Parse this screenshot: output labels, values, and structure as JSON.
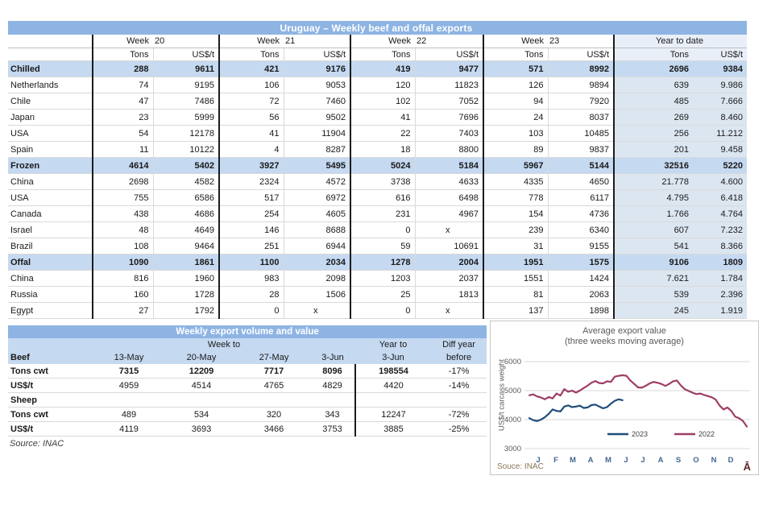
{
  "main_table": {
    "title": "Uruguay – Weekly beef and offal exports",
    "week_word": "Week",
    "weeks": [
      "20",
      "21",
      "22",
      "23"
    ],
    "ytd_label": "Year to date",
    "col_tons": "Tons",
    "col_usdt": "US$/t",
    "rows": [
      {
        "label": "Chilled",
        "section": true,
        "values": [
          "288",
          "9611",
          "421",
          "9176",
          "419",
          "9477",
          "571",
          "8992",
          "2696",
          "9384"
        ]
      },
      {
        "label": "Netherlands",
        "section": false,
        "values": [
          "74",
          "9195",
          "106",
          "9053",
          "120",
          "11823",
          "126",
          "9894",
          "639",
          "9.986"
        ]
      },
      {
        "label": "Chile",
        "section": false,
        "values": [
          "47",
          "7486",
          "72",
          "7460",
          "102",
          "7052",
          "94",
          "7920",
          "485",
          "7.666"
        ]
      },
      {
        "label": "Japan",
        "section": false,
        "values": [
          "23",
          "5999",
          "56",
          "9502",
          "41",
          "7696",
          "24",
          "8037",
          "269",
          "8.460"
        ]
      },
      {
        "label": "USA",
        "section": false,
        "values": [
          "54",
          "12178",
          "41",
          "11904",
          "22",
          "7403",
          "103",
          "10485",
          "256",
          "11.212"
        ]
      },
      {
        "label": "Spain",
        "section": false,
        "values": [
          "11",
          "10122",
          "4",
          "8287",
          "18",
          "8800",
          "89",
          "9837",
          "201",
          "9.458"
        ]
      },
      {
        "label": "Frozen",
        "section": true,
        "values": [
          "4614",
          "5402",
          "3927",
          "5495",
          "5024",
          "5184",
          "5967",
          "5144",
          "32516",
          "5220"
        ]
      },
      {
        "label": "China",
        "section": false,
        "values": [
          "2698",
          "4582",
          "2324",
          "4572",
          "3738",
          "4633",
          "4335",
          "4650",
          "21.778",
          "4.600"
        ]
      },
      {
        "label": "USA",
        "section": false,
        "values": [
          "755",
          "6586",
          "517",
          "6972",
          "616",
          "6498",
          "778",
          "6117",
          "4.795",
          "6.418"
        ]
      },
      {
        "label": "Canada",
        "section": false,
        "values": [
          "438",
          "4686",
          "254",
          "4605",
          "231",
          "4967",
          "154",
          "4736",
          "1.766",
          "4.764"
        ]
      },
      {
        "label": "Israel",
        "section": false,
        "values": [
          "48",
          "4649",
          "146",
          "8688",
          "0",
          "x",
          "239",
          "6340",
          "607",
          "7.232"
        ]
      },
      {
        "label": "Brazil",
        "section": false,
        "values": [
          "108",
          "9464",
          "251",
          "6944",
          "59",
          "10691",
          "31",
          "9155",
          "541",
          "8.366"
        ]
      },
      {
        "label": "Offal",
        "section": true,
        "values": [
          "1090",
          "1861",
          "1100",
          "2034",
          "1278",
          "2004",
          "1951",
          "1575",
          "9106",
          "1809"
        ]
      },
      {
        "label": "China",
        "section": false,
        "values": [
          "816",
          "1960",
          "983",
          "2098",
          "1203",
          "2037",
          "1551",
          "1424",
          "7.621",
          "1.784"
        ]
      },
      {
        "label": "Russia",
        "section": false,
        "values": [
          "160",
          "1728",
          "28",
          "1506",
          "25",
          "1813",
          "81",
          "2063",
          "539",
          "2.396"
        ]
      },
      {
        "label": "Egypt",
        "section": false,
        "values": [
          "27",
          "1792",
          "0",
          "x",
          "0",
          "x",
          "137",
          "1898",
          "245",
          "1.919"
        ]
      }
    ]
  },
  "weekly_table": {
    "title": "Weekly export volume and value",
    "week_to": "Week to",
    "year_to": "Year to",
    "diff_year": "Diff year",
    "beef_label": "Beef",
    "dates": [
      "13-May",
      "20-May",
      "27-May",
      "3-Jun"
    ],
    "ytd_date": "3-Jun",
    "before": "before",
    "rows": [
      {
        "label": "Tons cwt",
        "bold": true,
        "values": [
          "7315",
          "12209",
          "7717",
          "8096",
          "198554",
          "-17%"
        ]
      },
      {
        "label": "US$/t",
        "bold": false,
        "values": [
          "4959",
          "4514",
          "4765",
          "4829",
          "4420",
          "-14%"
        ]
      },
      {
        "label": "Sheep",
        "bold": false,
        "values": [
          "",
          "",
          "",
          "",
          "",
          ""
        ]
      },
      {
        "label": "Tons cwt",
        "bold": false,
        "values": [
          "489",
          "534",
          "320",
          "343",
          "12247",
          "-72%"
        ]
      },
      {
        "label": "US$/t",
        "bold": false,
        "values": [
          "4119",
          "3693",
          "3466",
          "3753",
          "3885",
          "-25%"
        ]
      }
    ],
    "source": "Source: INAC"
  },
  "chart_data": {
    "type": "line",
    "title": "Average export value",
    "subtitle": "(three weeks moving average)",
    "ylabel": "US$/t carcass weight",
    "ylim": [
      3000,
      6000
    ],
    "ytick_labels": [
      "6000",
      "5000",
      "4000",
      "3000"
    ],
    "yticks": [
      6000,
      5000,
      4000,
      3000
    ],
    "months": [
      "J",
      "F",
      "M",
      "A",
      "M",
      "J",
      "J",
      "A",
      "S",
      "O",
      "N",
      "D"
    ],
    "grid": true,
    "legend_position": "inside-bottom",
    "series": [
      {
        "name": "2023",
        "color": "#1F4E79",
        "values": [
          4050,
          3980,
          3950,
          4000,
          4080,
          4200,
          4350,
          4300,
          4280,
          4450,
          4490,
          4430,
          4450,
          4480,
          4400,
          4420,
          4500,
          4520,
          4450,
          4390,
          4430,
          4550,
          4650,
          4700,
          4670
        ]
      },
      {
        "name": "2022",
        "color": "#9E3D66",
        "values": [
          4840,
          4870,
          4800,
          4760,
          4700,
          4780,
          4730,
          4900,
          4830,
          5050,
          4960,
          5000,
          4930,
          5000,
          5090,
          5170,
          5270,
          5330,
          5260,
          5250,
          5320,
          5300,
          5480,
          5510,
          5530,
          5510,
          5350,
          5230,
          5110,
          5100,
          5170,
          5250,
          5300,
          5270,
          5230,
          5160,
          5230,
          5320,
          5350,
          5180,
          5050,
          4990,
          4930,
          4880,
          4900,
          4850,
          4810,
          4770,
          4690,
          4480,
          4350,
          4420,
          4300,
          4100,
          4050,
          3950,
          3760
        ]
      }
    ],
    "source_note": "Souce: INAC",
    "watermark": "Ā"
  }
}
